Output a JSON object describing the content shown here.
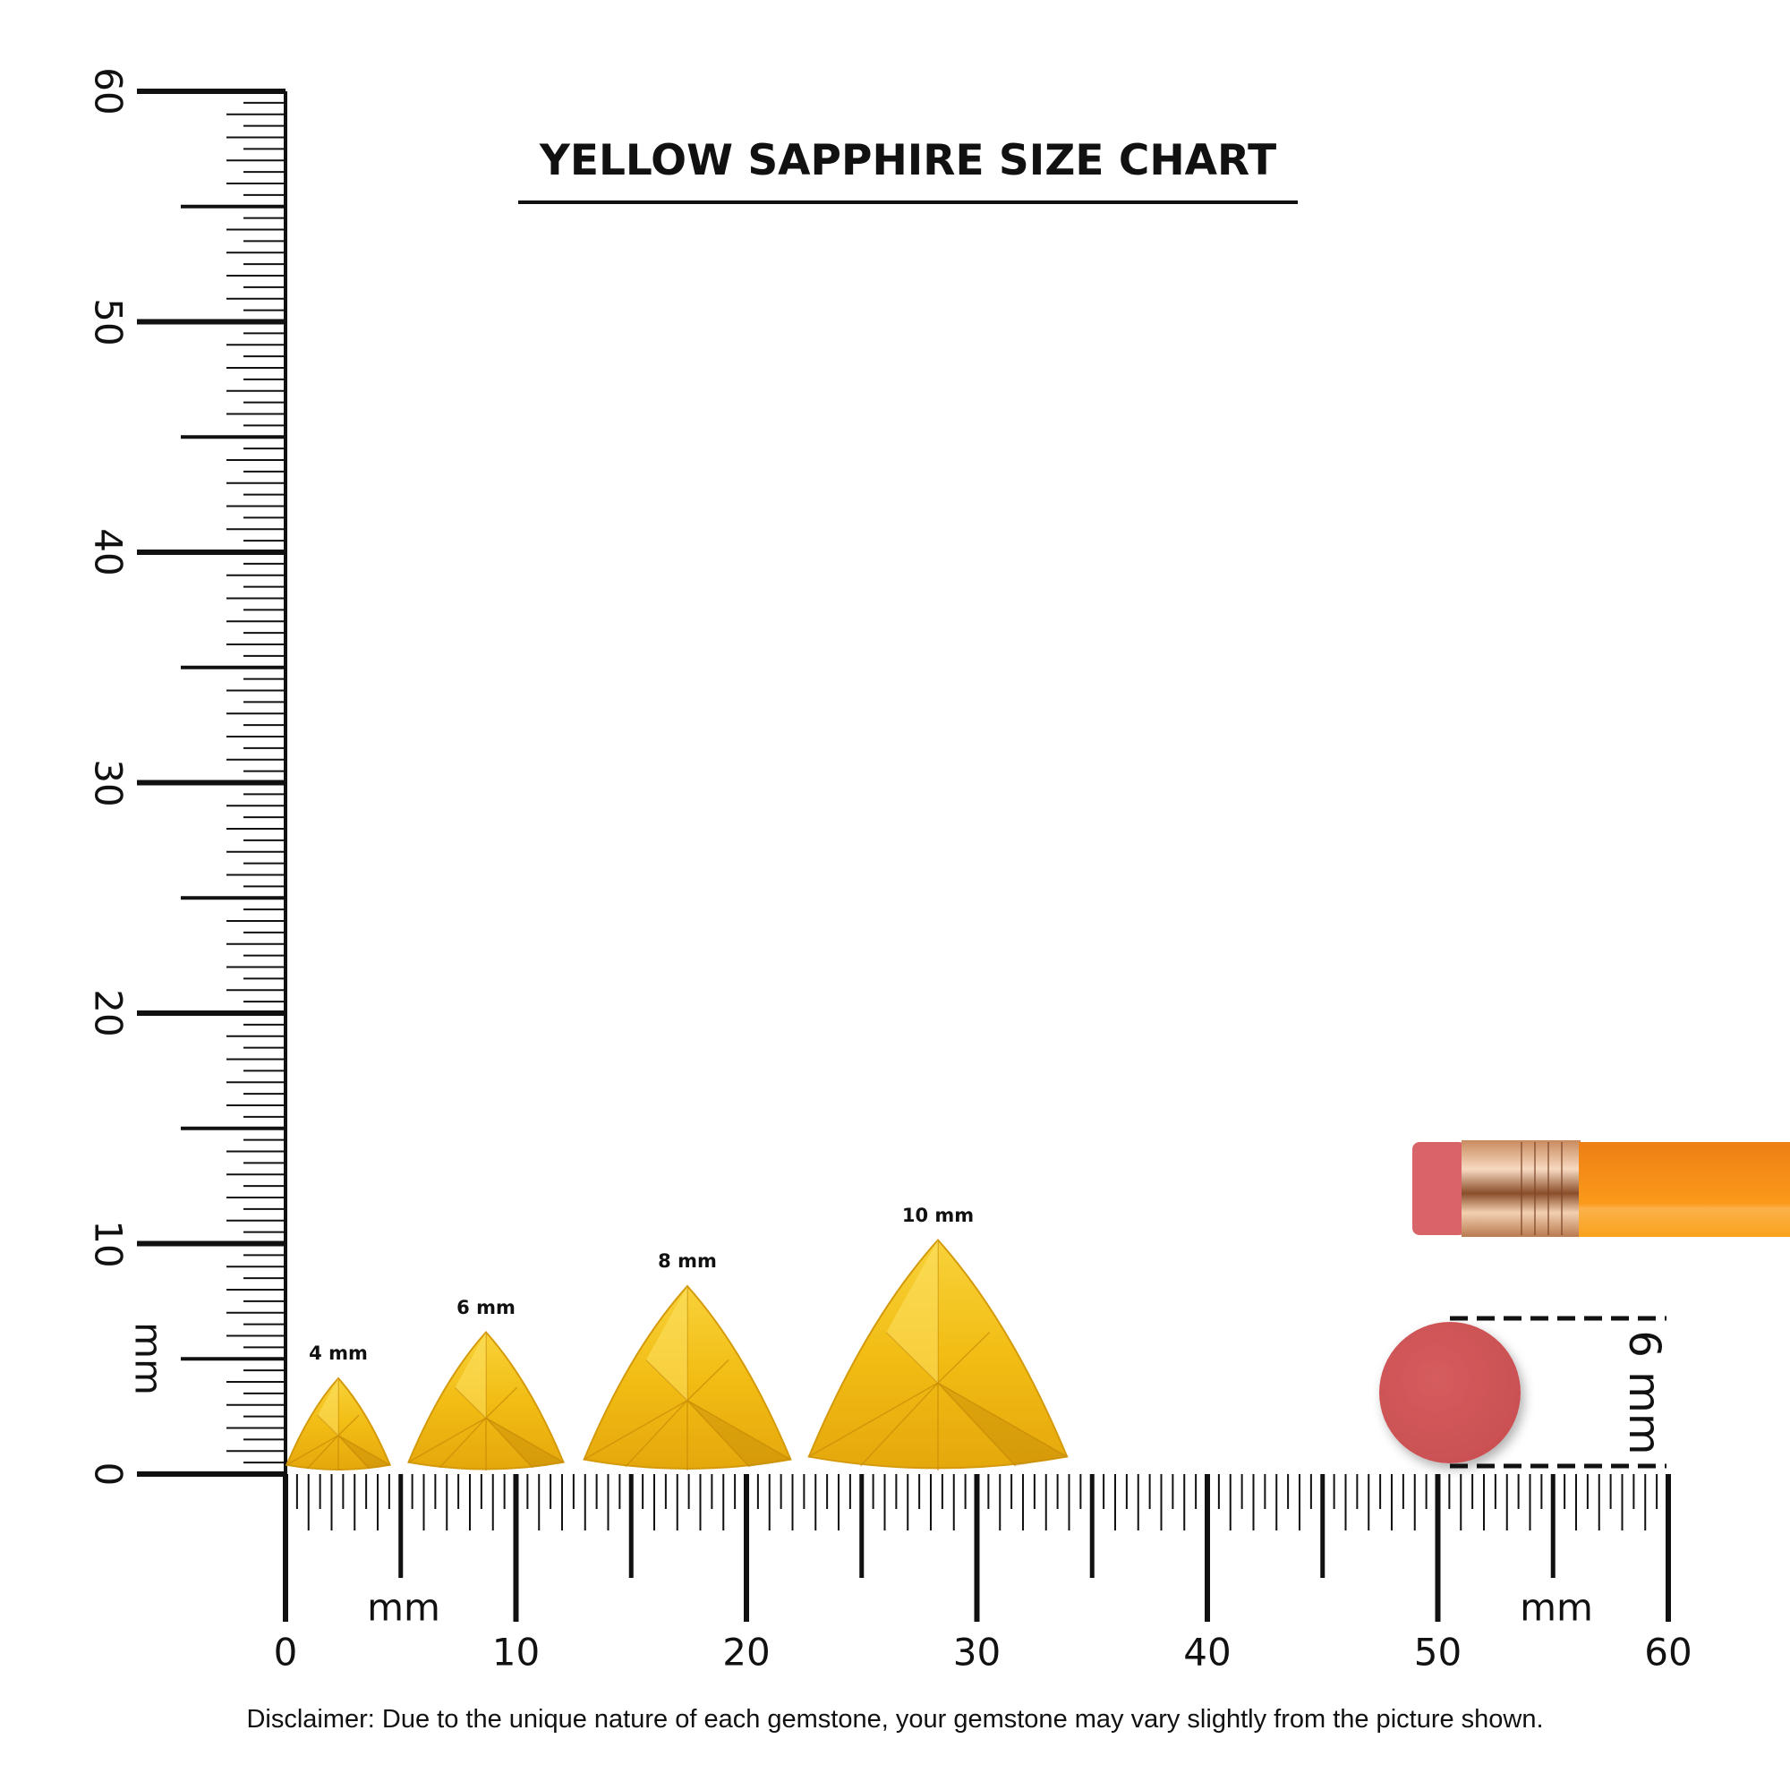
{
  "title": "YELLOW SAPPHIRE SIZE CHART",
  "disclaimer": "Disclaimer: Due to the unique nature of each gemstone, your gemstone may vary slightly from the picture shown.",
  "ruler": {
    "unit_label": "mm",
    "horizontal_labels": [
      "0",
      "10",
      "20",
      "30",
      "40",
      "50",
      "60"
    ],
    "vertical_labels": [
      "0",
      "10",
      "20",
      "30",
      "40",
      "50",
      "60"
    ],
    "range_mm": [
      0,
      60
    ],
    "minor_step_mm": 0.5
  },
  "gems": [
    {
      "label": "4 mm",
      "size_mm": 4
    },
    {
      "label": "6 mm",
      "size_mm": 6
    },
    {
      "label": "8 mm",
      "size_mm": 8
    },
    {
      "label": "10 mm",
      "size_mm": 10
    }
  ],
  "reference": {
    "object": "pencil eraser",
    "label": "6 mm",
    "size_mm": 6
  },
  "colors": {
    "gem": "#f5c518",
    "gem_dark": "#d99a0a",
    "eraser": "#d25a5b",
    "pencil": "#f7941d",
    "ferrule": "#e8b48a"
  }
}
